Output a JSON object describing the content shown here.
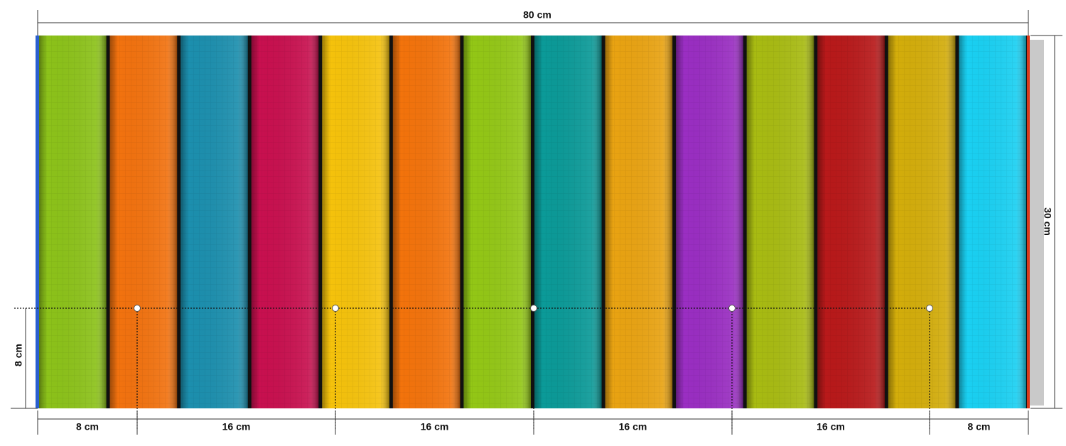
{
  "dimensions": {
    "width": "80 cm",
    "height": "30 cm",
    "hook_height": "8 cm",
    "hook_spacing": [
      "8 cm",
      "16 cm",
      "16 cm",
      "16 cm",
      "16 cm",
      "8 cm"
    ]
  }
}
